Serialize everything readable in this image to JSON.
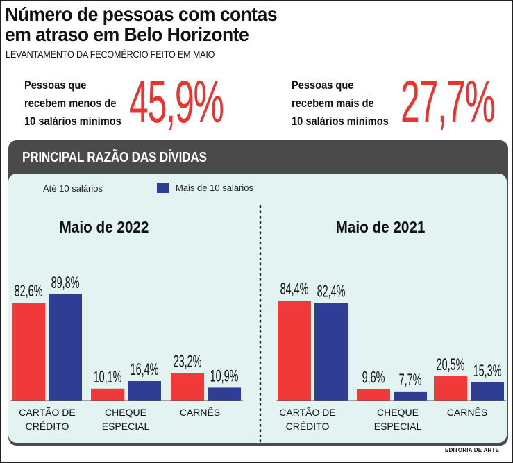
{
  "header": {
    "title_line1": "Número de pessoas com contas",
    "title_line2": "em atraso em Belo Horizonte",
    "subtitle": "LEVANTAMENTO DA FECOMÉRCIO FEITO EM MAIO"
  },
  "stats": [
    {
      "lines": [
        "Pessoas que",
        "recebem menos de",
        "10 salários mínimos"
      ],
      "value": "45,9%"
    },
    {
      "lines": [
        "Pessoas que",
        "recebem mais de",
        "10 salários mínimos"
      ],
      "value": "27,7%"
    }
  ],
  "panel_title": "PRINCIPAL RAZÃO DAS DÍVIDAS",
  "legend": [
    {
      "label": "Até 10 salários",
      "color": "#f2393a",
      "swatch_shown": false
    },
    {
      "label": "Mais de 10 salários",
      "color": "#2f3d94",
      "swatch_shown": true
    }
  ],
  "chart_data": [
    {
      "type": "bar",
      "title": "Maio de 2022",
      "categories": [
        [
          "CARTÃO DE",
          "CRÉDITO"
        ],
        [
          "CHEQUE",
          "ESPECIAL"
        ],
        [
          "CARNÊS"
        ]
      ],
      "series": [
        {
          "name": "Até 10 salários",
          "values": [
            82.6,
            10.1,
            23.2
          ],
          "labels": [
            "82,6%",
            "10,1%",
            "23,2%"
          ],
          "color": "#f2393a"
        },
        {
          "name": "Mais de 10 salários",
          "values": [
            89.8,
            16.4,
            10.9
          ],
          "labels": [
            "89,8%",
            "16,4%",
            "10,9%"
          ],
          "color": "#2f3d94"
        }
      ],
      "ylim": [
        0,
        100
      ]
    },
    {
      "type": "bar",
      "title": "Maio de 2021",
      "categories": [
        [
          "CARTÃO DE",
          "CRÉDITO"
        ],
        [
          "CHEQUE",
          "ESPECIAL"
        ],
        [
          "CARNÊS"
        ]
      ],
      "series": [
        {
          "name": "Até 10 salários",
          "values": [
            84.4,
            9.6,
            20.5
          ],
          "labels": [
            "84,4%",
            "9,6%",
            "20,5%"
          ],
          "color": "#f2393a"
        },
        {
          "name": "Mais de 10 salários",
          "values": [
            82.4,
            7.7,
            15.3
          ],
          "labels": [
            "82,4%",
            "7,7%",
            "15,3%"
          ],
          "color": "#2f3d94"
        }
      ],
      "ylim": [
        0,
        100
      ]
    }
  ],
  "footer": "EDITORIA DE ARTE"
}
